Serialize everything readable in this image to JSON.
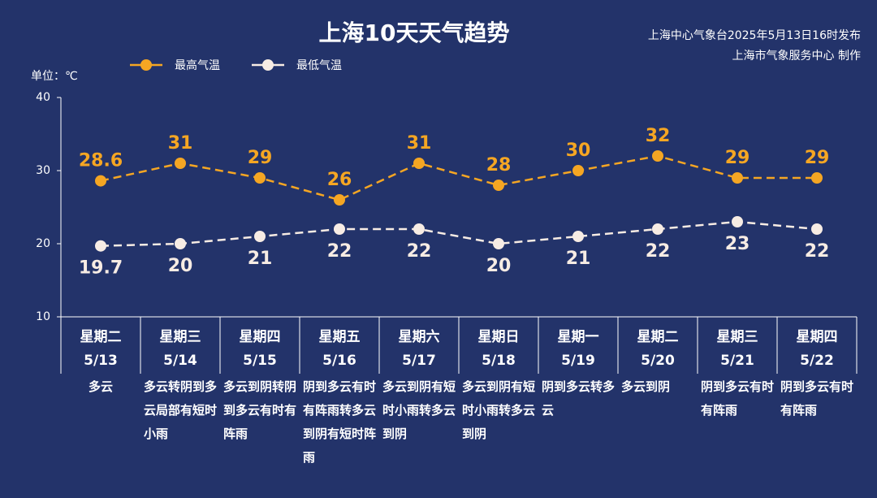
{
  "chart_data": {
    "type": "line",
    "title": "上海10天天气趋势",
    "source": [
      "上海中心气象台2025年5月13日16时发布",
      "上海市气象服务中心 制作"
    ],
    "unit_label": "单位：℃",
    "categories": [
      "星期二",
      "星期三",
      "星期四",
      "星期五",
      "星期六",
      "星期日",
      "星期一",
      "星期二",
      "星期三",
      "星期四"
    ],
    "dates": [
      "5/13",
      "5/14",
      "5/15",
      "5/16",
      "5/17",
      "5/18",
      "5/19",
      "5/20",
      "5/21",
      "5/22"
    ],
    "descriptions": [
      "多云",
      "多云转阴到多云局部有短时小雨",
      "多云到阴转阴到多云有时有阵雨",
      "阴到多云有时有阵雨转多云到阴有短时阵雨",
      "多云到阴有短时小雨转多云到阴",
      "多云到阴有短时小雨转多云到阴",
      "阴到多云转多云",
      "多云到阴",
      "阴到多云有时有阵雨",
      "阴到多云有时有阵雨"
    ],
    "series": [
      {
        "name": "最高气温",
        "color": "#f5a623",
        "values": [
          28.6,
          31,
          29,
          26,
          31,
          28,
          30,
          32,
          29,
          29
        ]
      },
      {
        "name": "最低气温",
        "color": "#f7ece4",
        "values": [
          19.7,
          20,
          21,
          22,
          22,
          20,
          21,
          22,
          23,
          22
        ]
      }
    ],
    "ylim": [
      10,
      40
    ],
    "yticks": [
      10,
      20,
      30,
      40
    ]
  }
}
